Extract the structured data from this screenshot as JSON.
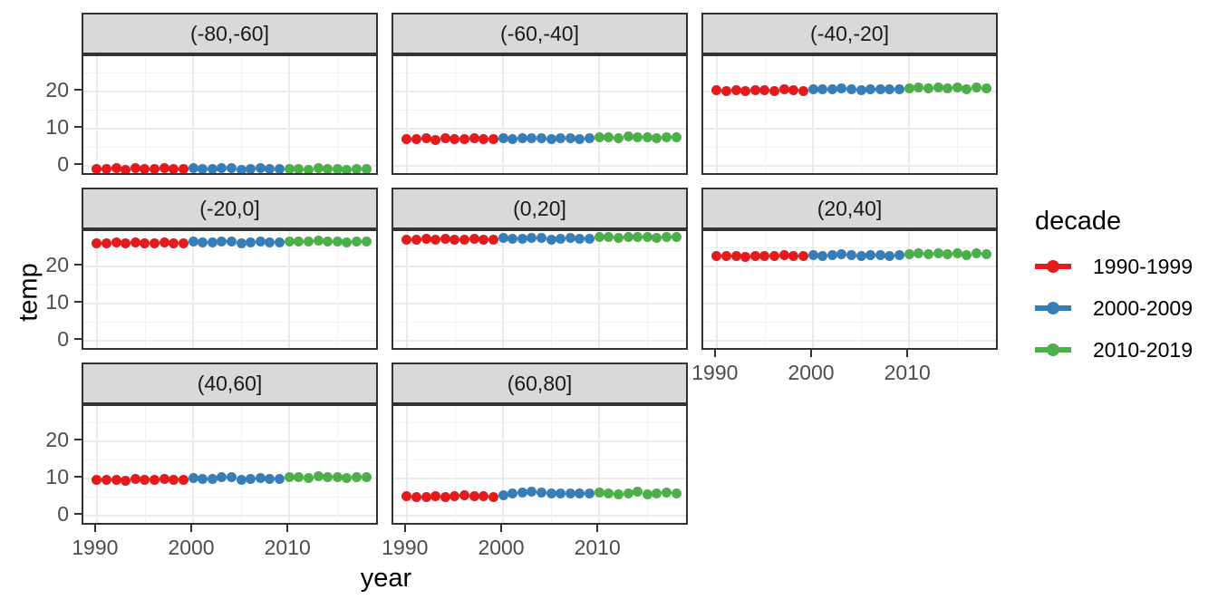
{
  "legend": {
    "title": "decade",
    "items": [
      {
        "label": "1990-1999",
        "color": "#E41A1C"
      },
      {
        "label": "2000-2009",
        "color": "#377EB8"
      },
      {
        "label": "2010-2019",
        "color": "#4DAF4A"
      }
    ]
  },
  "axes": {
    "x": {
      "title": "year",
      "ticks": [
        1990,
        2000,
        2010
      ],
      "tick_labels": [
        "1990",
        "2000",
        "2010"
      ],
      "minor_ticks": [
        1995,
        2005,
        2015
      ],
      "range": [
        1988.6,
        2019.4
      ]
    },
    "y": {
      "title": "temp",
      "ticks": [
        0,
        10,
        20
      ],
      "tick_labels": [
        "0",
        "10",
        "20"
      ],
      "minor_ticks": [
        5,
        15,
        25
      ],
      "range": [
        -3,
        29.5
      ]
    }
  },
  "chart_data": {
    "type": "scatter",
    "facet_variable": "latitude band",
    "legend_variable": "decade",
    "x_title": "year",
    "y_title": "temp",
    "grid": true,
    "legend_position": "right",
    "x": [
      1990,
      1991,
      1992,
      1993,
      1994,
      1995,
      1996,
      1997,
      1998,
      1999,
      2000,
      2001,
      2002,
      2003,
      2004,
      2005,
      2006,
      2007,
      2008,
      2009,
      2010,
      2011,
      2012,
      2013,
      2014,
      2015,
      2016,
      2017,
      2018
    ],
    "decade_of_year": {
      "1990-1999": [
        1990,
        1999
      ],
      "2000-2009": [
        2000,
        2009
      ],
      "2010-2019": [
        2010,
        2019
      ]
    },
    "facets": [
      {
        "label": "(-80,-60]",
        "y": [
          -0.9,
          -1.0,
          -0.8,
          -1.1,
          -0.8,
          -0.9,
          -1.0,
          -0.7,
          -0.9,
          -1.0,
          -0.8,
          -1.0,
          -0.9,
          -0.7,
          -0.8,
          -1.1,
          -0.9,
          -0.8,
          -1.0,
          -0.9,
          -1.0,
          -0.9,
          -1.1,
          -0.8,
          -1.0,
          -0.9,
          -1.2,
          -0.9,
          -1.0
        ]
      },
      {
        "label": "(-60,-40]",
        "y": [
          7.2,
          7.1,
          7.3,
          7.0,
          7.3,
          7.2,
          7.1,
          7.4,
          7.2,
          7.1,
          7.4,
          7.2,
          7.3,
          7.5,
          7.4,
          7.1,
          7.3,
          7.4,
          7.2,
          7.3,
          7.6,
          7.7,
          7.5,
          7.8,
          7.6,
          7.7,
          7.4,
          7.7,
          7.6
        ]
      },
      {
        "label": "(-40,-20]",
        "y": [
          20.3,
          20.2,
          20.4,
          20.1,
          20.4,
          20.3,
          20.2,
          20.5,
          20.3,
          20.2,
          20.7,
          20.5,
          20.6,
          20.8,
          20.7,
          20.4,
          20.6,
          20.7,
          20.5,
          20.6,
          20.9,
          21.0,
          20.8,
          21.1,
          20.9,
          21.0,
          20.7,
          21.0,
          20.9
        ]
      },
      {
        "label": "(-20,0]",
        "y": [
          26.3,
          26.2,
          26.4,
          26.1,
          26.4,
          26.3,
          26.2,
          26.5,
          26.3,
          26.2,
          26.6,
          26.4,
          26.5,
          26.7,
          26.6,
          26.3,
          26.5,
          26.6,
          26.4,
          26.5,
          26.7,
          26.8,
          26.6,
          26.9,
          26.7,
          26.8,
          26.5,
          26.8,
          26.7
        ]
      },
      {
        "label": "(0,20]",
        "y": [
          27.3,
          27.2,
          27.4,
          27.1,
          27.4,
          27.3,
          27.2,
          27.5,
          27.3,
          27.2,
          27.6,
          27.4,
          27.5,
          27.7,
          27.6,
          27.3,
          27.5,
          27.6,
          27.4,
          27.5,
          27.8,
          27.9,
          27.7,
          28.0,
          27.8,
          27.9,
          27.6,
          27.9,
          27.8
        ]
      },
      {
        "label": "(20,40]",
        "y": [
          22.8,
          22.7,
          22.9,
          22.6,
          22.9,
          22.8,
          22.7,
          23.0,
          22.8,
          22.7,
          23.1,
          22.9,
          23.0,
          23.2,
          23.1,
          22.8,
          23.0,
          23.1,
          22.9,
          23.0,
          23.3,
          23.4,
          23.2,
          23.5,
          23.3,
          23.4,
          23.1,
          23.4,
          23.3
        ]
      },
      {
        "label": "(40,60]",
        "y": [
          9.6,
          9.5,
          9.7,
          9.4,
          9.8,
          9.6,
          9.5,
          9.9,
          9.6,
          9.5,
          10.0,
          9.8,
          9.9,
          10.2,
          10.3,
          9.7,
          9.9,
          10.0,
          9.8,
          9.9,
          10.2,
          10.3,
          10.1,
          10.5,
          10.2,
          10.4,
          10.0,
          10.3,
          10.2
        ]
      },
      {
        "label": "(60,80]",
        "y": [
          5.2,
          5.0,
          4.9,
          5.3,
          5.0,
          5.2,
          5.5,
          5.3,
          5.1,
          5.0,
          5.5,
          5.8,
          6.1,
          6.3,
          6.2,
          5.9,
          6.0,
          5.9,
          5.8,
          6.0,
          6.2,
          5.8,
          5.6,
          5.9,
          6.3,
          5.7,
          6.0,
          6.1,
          5.9
        ]
      }
    ]
  }
}
